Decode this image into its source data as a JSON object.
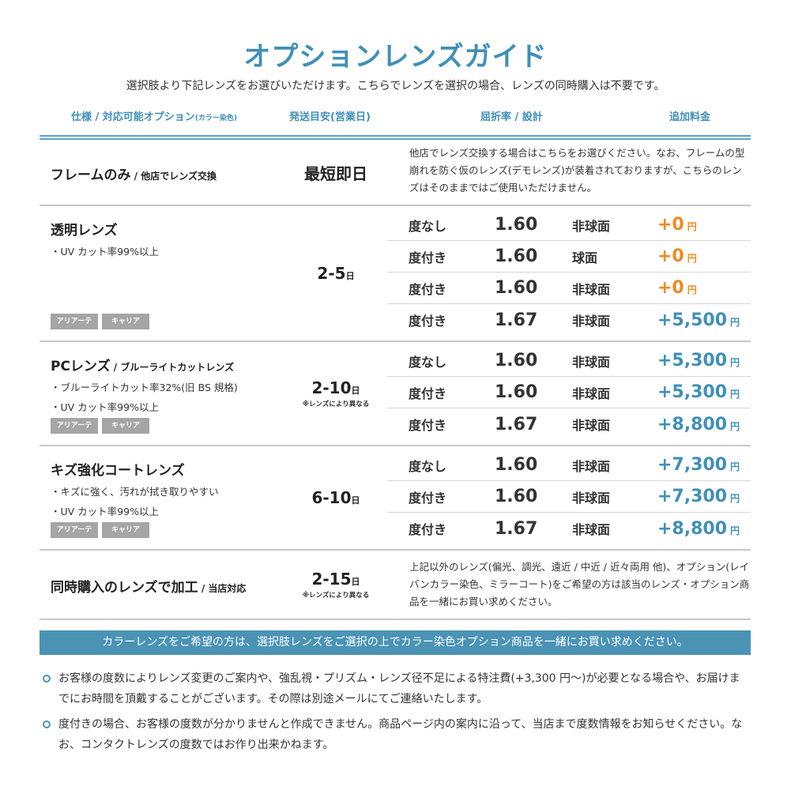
{
  "title": "オプションレンズガイド",
  "subtitle": "選択肢より下記レンズをお選びいただけます。こちらでレンズを選択の場合、レンズの同時購入は不要です。",
  "header": {
    "spec": "仕様 / 対応可能オプション",
    "spec_small": "(カラー染色)",
    "ship": "発送目安(営業日)",
    "index": "屈折率 / 設計",
    "price": "追加料金"
  },
  "colors": {
    "accent": "#3f90b8",
    "orange": "#f08a24",
    "tag": "#a5a5a5"
  },
  "frame": {
    "name": "フレームのみ",
    "name_small": " / 他店でレンズ交換",
    "ship": "最短即日",
    "desc": "他店でレンズ交換する場合はこちらをお選びください。なお、フレームの型崩れを防ぐ仮のレンズ(デモレンズ)が装着されておりますが、こちらのレンズはそのままではご使用いただけません。"
  },
  "groups": [
    {
      "name": "透明レンズ",
      "name_small": "",
      "features": [
        "・UV カット率99%以上"
      ],
      "ship": "2-5",
      "ship_unit": "日",
      "note": "",
      "tags": [
        "アリアーテ",
        "キャリア"
      ],
      "rows": [
        {
          "power": "度なし",
          "index": "1.60",
          "design": "非球面",
          "price": "+0",
          "unit": "円",
          "color": "orange"
        },
        {
          "power": "度付き",
          "index": "1.60",
          "design": "球面",
          "price": "+0",
          "unit": "円",
          "color": "orange"
        },
        {
          "power": "度付き",
          "index": "1.60",
          "design": "非球面",
          "price": "+0",
          "unit": "円",
          "color": "orange"
        },
        {
          "power": "度付き",
          "index": "1.67",
          "design": "非球面",
          "price": "+5,500",
          "unit": "円",
          "color": "accent"
        }
      ]
    },
    {
      "name": "PCレンズ",
      "name_small": " / ブルーライトカットレンズ",
      "features": [
        "・ブルーライトカット率32%(旧 BS 規格)",
        "・UV カット率99%以上"
      ],
      "ship": "2-10",
      "ship_unit": "日",
      "note": "※レンズにより異なる",
      "tags": [
        "アリアーテ",
        "キャリア"
      ],
      "rows": [
        {
          "power": "度なし",
          "index": "1.60",
          "design": "非球面",
          "price": "+5,300",
          "unit": "円",
          "color": "accent"
        },
        {
          "power": "度付き",
          "index": "1.60",
          "design": "非球面",
          "price": "+5,300",
          "unit": "円",
          "color": "accent"
        },
        {
          "power": "度付き",
          "index": "1.67",
          "design": "非球面",
          "price": "+8,800",
          "unit": "円",
          "color": "accent"
        }
      ]
    },
    {
      "name": "キズ強化コートレンズ",
      "name_small": "",
      "features": [
        "・キズに強く、汚れが拭き取りやすい",
        "・UV カット率99%以上"
      ],
      "ship": "6-10",
      "ship_unit": "日",
      "note": "",
      "tags": [
        "アリアーテ",
        "キャリア"
      ],
      "rows": [
        {
          "power": "度なし",
          "index": "1.60",
          "design": "非球面",
          "price": "+7,300",
          "unit": "円",
          "color": "accent"
        },
        {
          "power": "度付き",
          "index": "1.60",
          "design": "非球面",
          "price": "+7,300",
          "unit": "円",
          "color": "accent"
        },
        {
          "power": "度付き",
          "index": "1.67",
          "design": "非球面",
          "price": "+8,800",
          "unit": "円",
          "color": "accent"
        }
      ]
    }
  ],
  "custom": {
    "name": "同時購入のレンズで加工",
    "name_small": " / 当店対応",
    "ship": "2-15",
    "ship_unit": "日",
    "note": "※レンズにより異なる",
    "desc": "上記以外のレンズ(偏光、調光、遠近 / 中近 / 近々両用 他)、オプション(レイバンカラー染色、ミラーコート)をご希望の方は該当のレンズ・オプション商品を一緒にお買い求めください。"
  },
  "banner": "カラーレンズをご希望の方は、選択肢レンズをご選択の上でカラー染色オプション商品を一緒にお買い求めください。",
  "notes": [
    "お客様の度数によりレンズ変更のご案内や、強乱視・プリズム・レンズ径不足による特注費(+3,300 円〜)が必要となる場合や、お届けまでにお時間を頂戴することがございます。その際は別途メールにてご連絡いたします。",
    "度付きの場合、お客様の度数が分かりませんと作成できません。商品ページ内の案内に沿って、当店まで度数情報をお知らせください。なお、コンタクトレンズの度数ではお作り出来かねます。"
  ]
}
